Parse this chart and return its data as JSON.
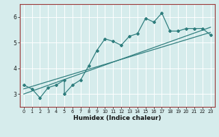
{
  "title": "",
  "xlabel": "Humidex (Indice chaleur)",
  "xlim": [
    -0.5,
    23.5
  ],
  "ylim": [
    2.5,
    6.5
  ],
  "yticks": [
    3,
    4,
    5,
    6
  ],
  "xticks": [
    0,
    1,
    2,
    3,
    4,
    5,
    6,
    7,
    8,
    9,
    10,
    11,
    12,
    13,
    14,
    15,
    16,
    17,
    18,
    19,
    20,
    21,
    22,
    23
  ],
  "bg_color": "#d6ecec",
  "line_color": "#2e7d7d",
  "grid_color": "#ffffff",
  "spine_color": "#993333",
  "main_line_x": [
    0,
    1,
    2,
    3,
    4,
    5,
    5,
    6,
    7,
    8,
    9,
    10,
    11,
    12,
    13,
    14,
    15,
    16,
    17,
    18,
    19,
    20,
    21,
    22,
    23
  ],
  "main_line_y": [
    3.35,
    3.2,
    2.85,
    3.25,
    3.35,
    3.55,
    3.0,
    3.35,
    3.55,
    4.1,
    4.7,
    5.15,
    5.05,
    4.9,
    5.25,
    5.35,
    5.95,
    5.8,
    6.15,
    5.45,
    5.45,
    5.55,
    5.55,
    5.55,
    5.3
  ],
  "line2_x": [
    0,
    23
  ],
  "line2_y": [
    3.2,
    5.4
  ],
  "line3_x": [
    0,
    23
  ],
  "line3_y": [
    3.0,
    5.6
  ]
}
